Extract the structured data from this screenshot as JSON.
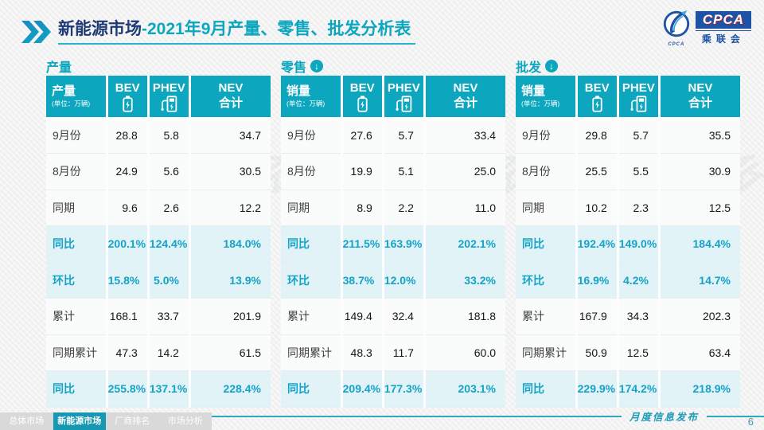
{
  "header": {
    "title_market": "新能源市场",
    "title_rest": "-2021年9月产量、零售、批发分析表"
  },
  "logo": {
    "acronym": "CPCA",
    "emblem_small_text": "CPCA",
    "name_cn": "乘联会"
  },
  "watermark": "CPCA 乘联会",
  "colors": {
    "teal": "#0ca6be",
    "teal_text": "#14a3c7",
    "highlight_bg": "#e2f3f8",
    "title_navy": "#1e3a74",
    "logo_blue": "#1d53a4",
    "tab_inactive_bg": "#d9d9d9",
    "footer_note": "#1b9cb8"
  },
  "tables": [
    {
      "section_title": "产量",
      "header_label": "产量",
      "header_unit": "(单位：万辆)",
      "columns": [
        {
          "label": "BEV",
          "icon": "battery-icon"
        },
        {
          "label": "PHEV",
          "icon": "charger-icon"
        },
        {
          "label": "NEV",
          "label2": "合计"
        }
      ],
      "rows": [
        {
          "label": "9月份",
          "values": [
            "28.8",
            "5.8",
            "34.7"
          ],
          "highlight": false
        },
        {
          "label": "8月份",
          "values": [
            "24.9",
            "5.6",
            "30.5"
          ],
          "highlight": false
        },
        {
          "label": "同期",
          "values": [
            "9.6",
            "2.6",
            "12.2"
          ],
          "highlight": false
        },
        {
          "label": "同比",
          "values": [
            "200.1%",
            "124.4%",
            "184.0%"
          ],
          "highlight": true
        },
        {
          "label": "环比",
          "values": [
            "15.8%",
            "5.0%",
            "13.9%"
          ],
          "highlight": true
        },
        {
          "label": "累计",
          "values": [
            "168.1",
            "33.7",
            "201.9"
          ],
          "highlight": false
        },
        {
          "label": "同期累计",
          "values": [
            "47.3",
            "14.2",
            "61.5"
          ],
          "highlight": false
        },
        {
          "label": "同比",
          "values": [
            "255.8%",
            "137.1%",
            "228.4%"
          ],
          "highlight": true
        }
      ]
    },
    {
      "section_title": "零售",
      "header_label": "销量",
      "header_unit": "(单位：万辆)",
      "columns": [
        {
          "label": "BEV",
          "icon": "battery-icon"
        },
        {
          "label": "PHEV",
          "icon": "charger-icon"
        },
        {
          "label": "NEV",
          "label2": "合计"
        }
      ],
      "rows": [
        {
          "label": "9月份",
          "values": [
            "27.6",
            "5.7",
            "33.4"
          ],
          "highlight": false
        },
        {
          "label": "8月份",
          "values": [
            "19.9",
            "5.1",
            "25.0"
          ],
          "highlight": false
        },
        {
          "label": "同期",
          "values": [
            "8.9",
            "2.2",
            "11.0"
          ],
          "highlight": false
        },
        {
          "label": "同比",
          "values": [
            "211.5%",
            "163.9%",
            "202.1%"
          ],
          "highlight": true
        },
        {
          "label": "环比",
          "values": [
            "38.7%",
            "12.0%",
            "33.2%"
          ],
          "highlight": true
        },
        {
          "label": "累计",
          "values": [
            "149.4",
            "32.4",
            "181.8"
          ],
          "highlight": false
        },
        {
          "label": "同期累计",
          "values": [
            "48.3",
            "11.7",
            "60.0"
          ],
          "highlight": false
        },
        {
          "label": "同比",
          "values": [
            "209.4%",
            "177.3%",
            "203.1%"
          ],
          "highlight": true
        }
      ]
    },
    {
      "section_title": "批发",
      "header_label": "销量",
      "header_unit": "(单位：万辆)",
      "columns": [
        {
          "label": "BEV",
          "icon": "battery-icon"
        },
        {
          "label": "PHEV",
          "icon": "charger-icon"
        },
        {
          "label": "NEV",
          "label2": "合计"
        }
      ],
      "rows": [
        {
          "label": "9月份",
          "values": [
            "29.8",
            "5.7",
            "35.5"
          ],
          "highlight": false
        },
        {
          "label": "8月份",
          "values": [
            "25.5",
            "5.5",
            "30.9"
          ],
          "highlight": false
        },
        {
          "label": "同期",
          "values": [
            "10.2",
            "2.3",
            "12.5"
          ],
          "highlight": false
        },
        {
          "label": "同比",
          "values": [
            "192.4%",
            "149.0%",
            "184.4%"
          ],
          "highlight": true
        },
        {
          "label": "环比",
          "values": [
            "16.9%",
            "4.2%",
            "14.7%"
          ],
          "highlight": true
        },
        {
          "label": "累计",
          "values": [
            "167.9",
            "34.3",
            "202.3"
          ],
          "highlight": false
        },
        {
          "label": "同期累计",
          "values": [
            "50.9",
            "12.5",
            "63.4"
          ],
          "highlight": false
        },
        {
          "label": "同比",
          "values": [
            "229.9%",
            "174.2%",
            "218.9%"
          ],
          "highlight": true
        }
      ]
    }
  ],
  "footer": {
    "note": "月度信息发布",
    "page_number": "6",
    "tabs": [
      {
        "label": "总体市场",
        "active": false
      },
      {
        "label": "新能源市场",
        "active": true
      },
      {
        "label": "厂商排名",
        "active": false
      },
      {
        "label": "市场分析",
        "active": false
      }
    ]
  }
}
